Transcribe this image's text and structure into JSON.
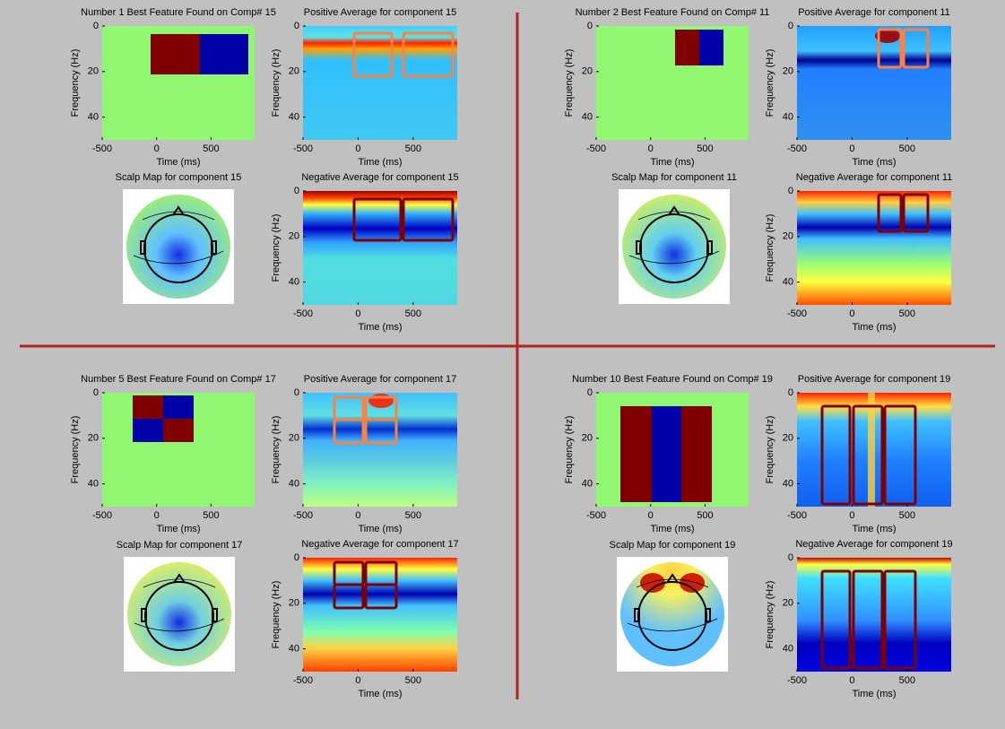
{
  "figure": {
    "xlabel": "Time (ms)",
    "ylabel": "Frequency (Hz)",
    "xlim": [
      -500,
      900
    ],
    "ylim": [
      0,
      50
    ],
    "xticks": [
      -500,
      0,
      500
    ],
    "yticks": [
      0,
      20,
      40
    ],
    "quadrants": [
      {
        "feature": {
          "title": "Number 1 Best Feature Found on Comp# 15"
        },
        "positive": {
          "title": "Positive Average for component 15"
        },
        "scalp": {
          "title": "Scalp Map for component 15"
        },
        "negative": {
          "title": "Negative Average for component 15"
        }
      },
      {
        "feature": {
          "title": "Number 2 Best Feature Found on Comp# 11"
        },
        "positive": {
          "title": "Positive Average for component 11"
        },
        "scalp": {
          "title": "Scalp Map for component 11"
        },
        "negative": {
          "title": "Negative Average for component 11"
        }
      },
      {
        "feature": {
          "title": "Number 5 Best Feature Found on Comp# 17"
        },
        "positive": {
          "title": "Positive Average for component 17"
        },
        "scalp": {
          "title": "Scalp Map for component 17"
        },
        "negative": {
          "title": "Negative Average for component 17"
        }
      },
      {
        "feature": {
          "title": "Number 10 Best Feature Found on Comp# 19"
        },
        "positive": {
          "title": "Positive Average for component 19"
        },
        "scalp": {
          "title": "Scalp Map for component 19"
        },
        "negative": {
          "title": "Negative Average for component 19"
        }
      }
    ]
  }
}
